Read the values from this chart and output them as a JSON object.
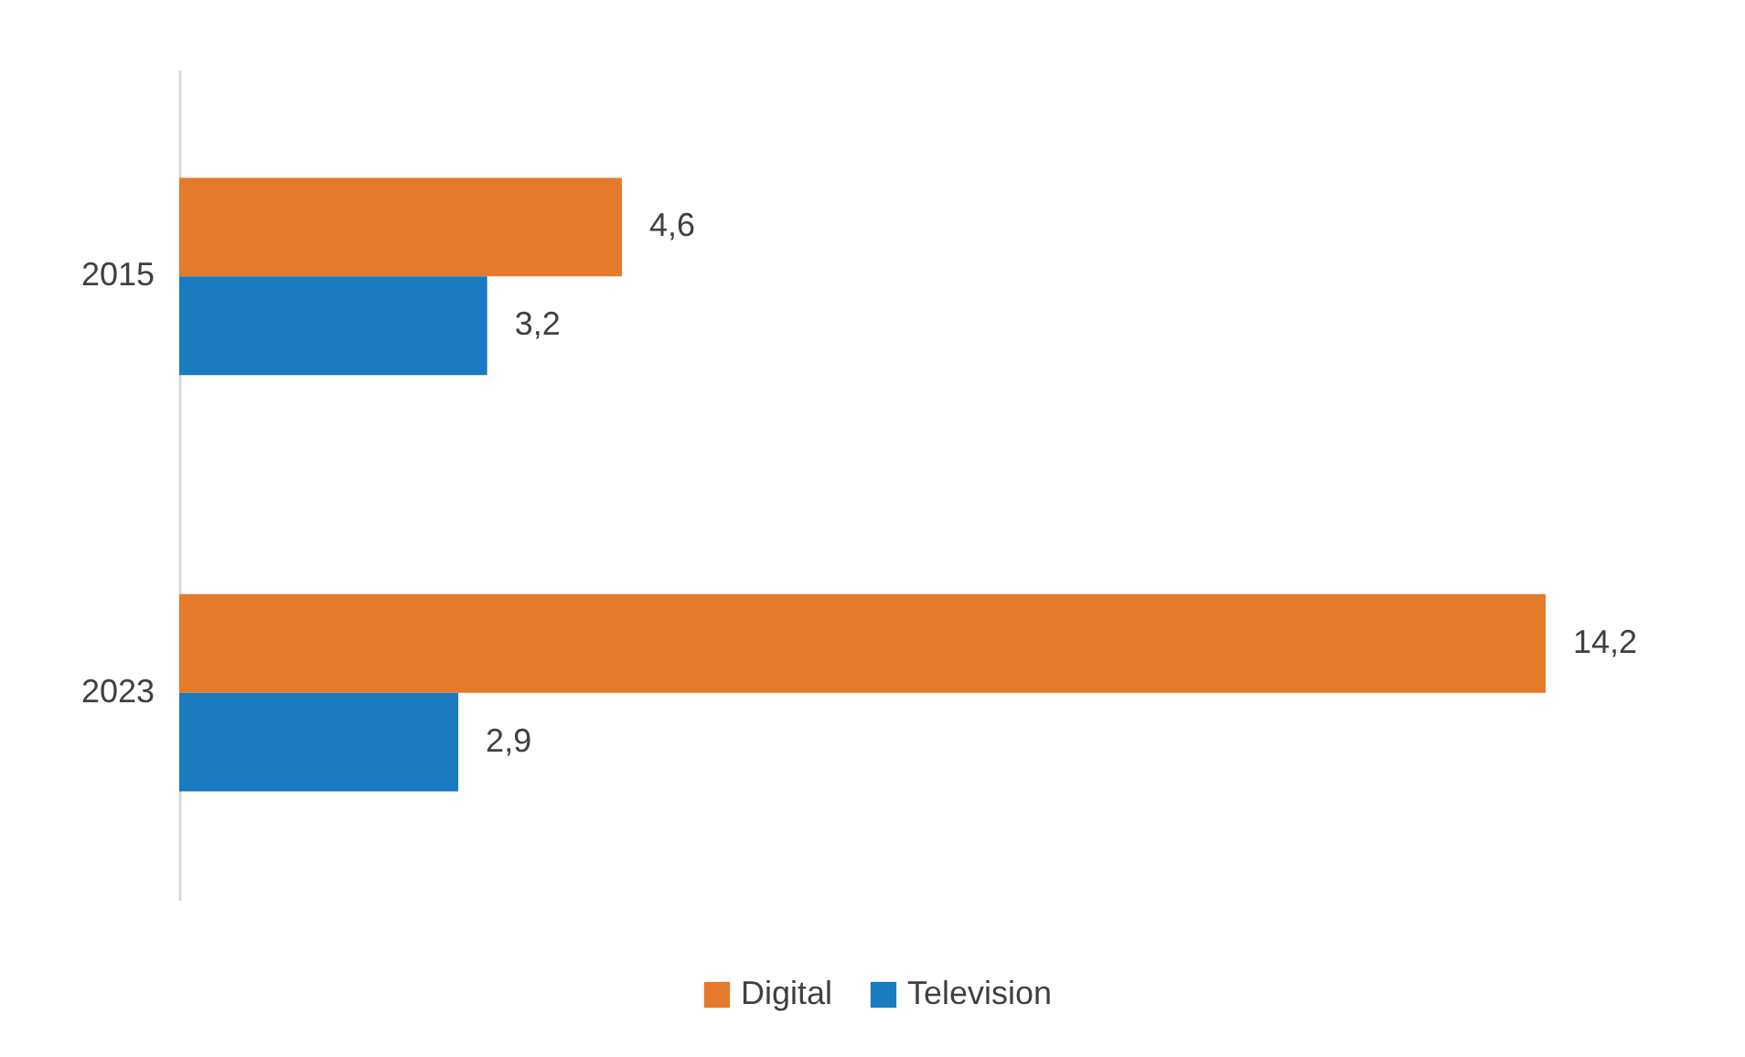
{
  "chart_data": {
    "type": "bar",
    "orientation": "horizontal",
    "categories": [
      "2015",
      "2023"
    ],
    "series": [
      {
        "name": "Digital",
        "color": "#e67a2b",
        "values": [
          4.6,
          14.2
        ],
        "value_labels": [
          "4,6",
          "14,2"
        ]
      },
      {
        "name": "Television",
        "color": "#1a7bc1",
        "values": [
          3.2,
          2.9
        ],
        "value_labels": [
          "3,2",
          "2,9"
        ]
      }
    ],
    "legend": "bottom"
  }
}
